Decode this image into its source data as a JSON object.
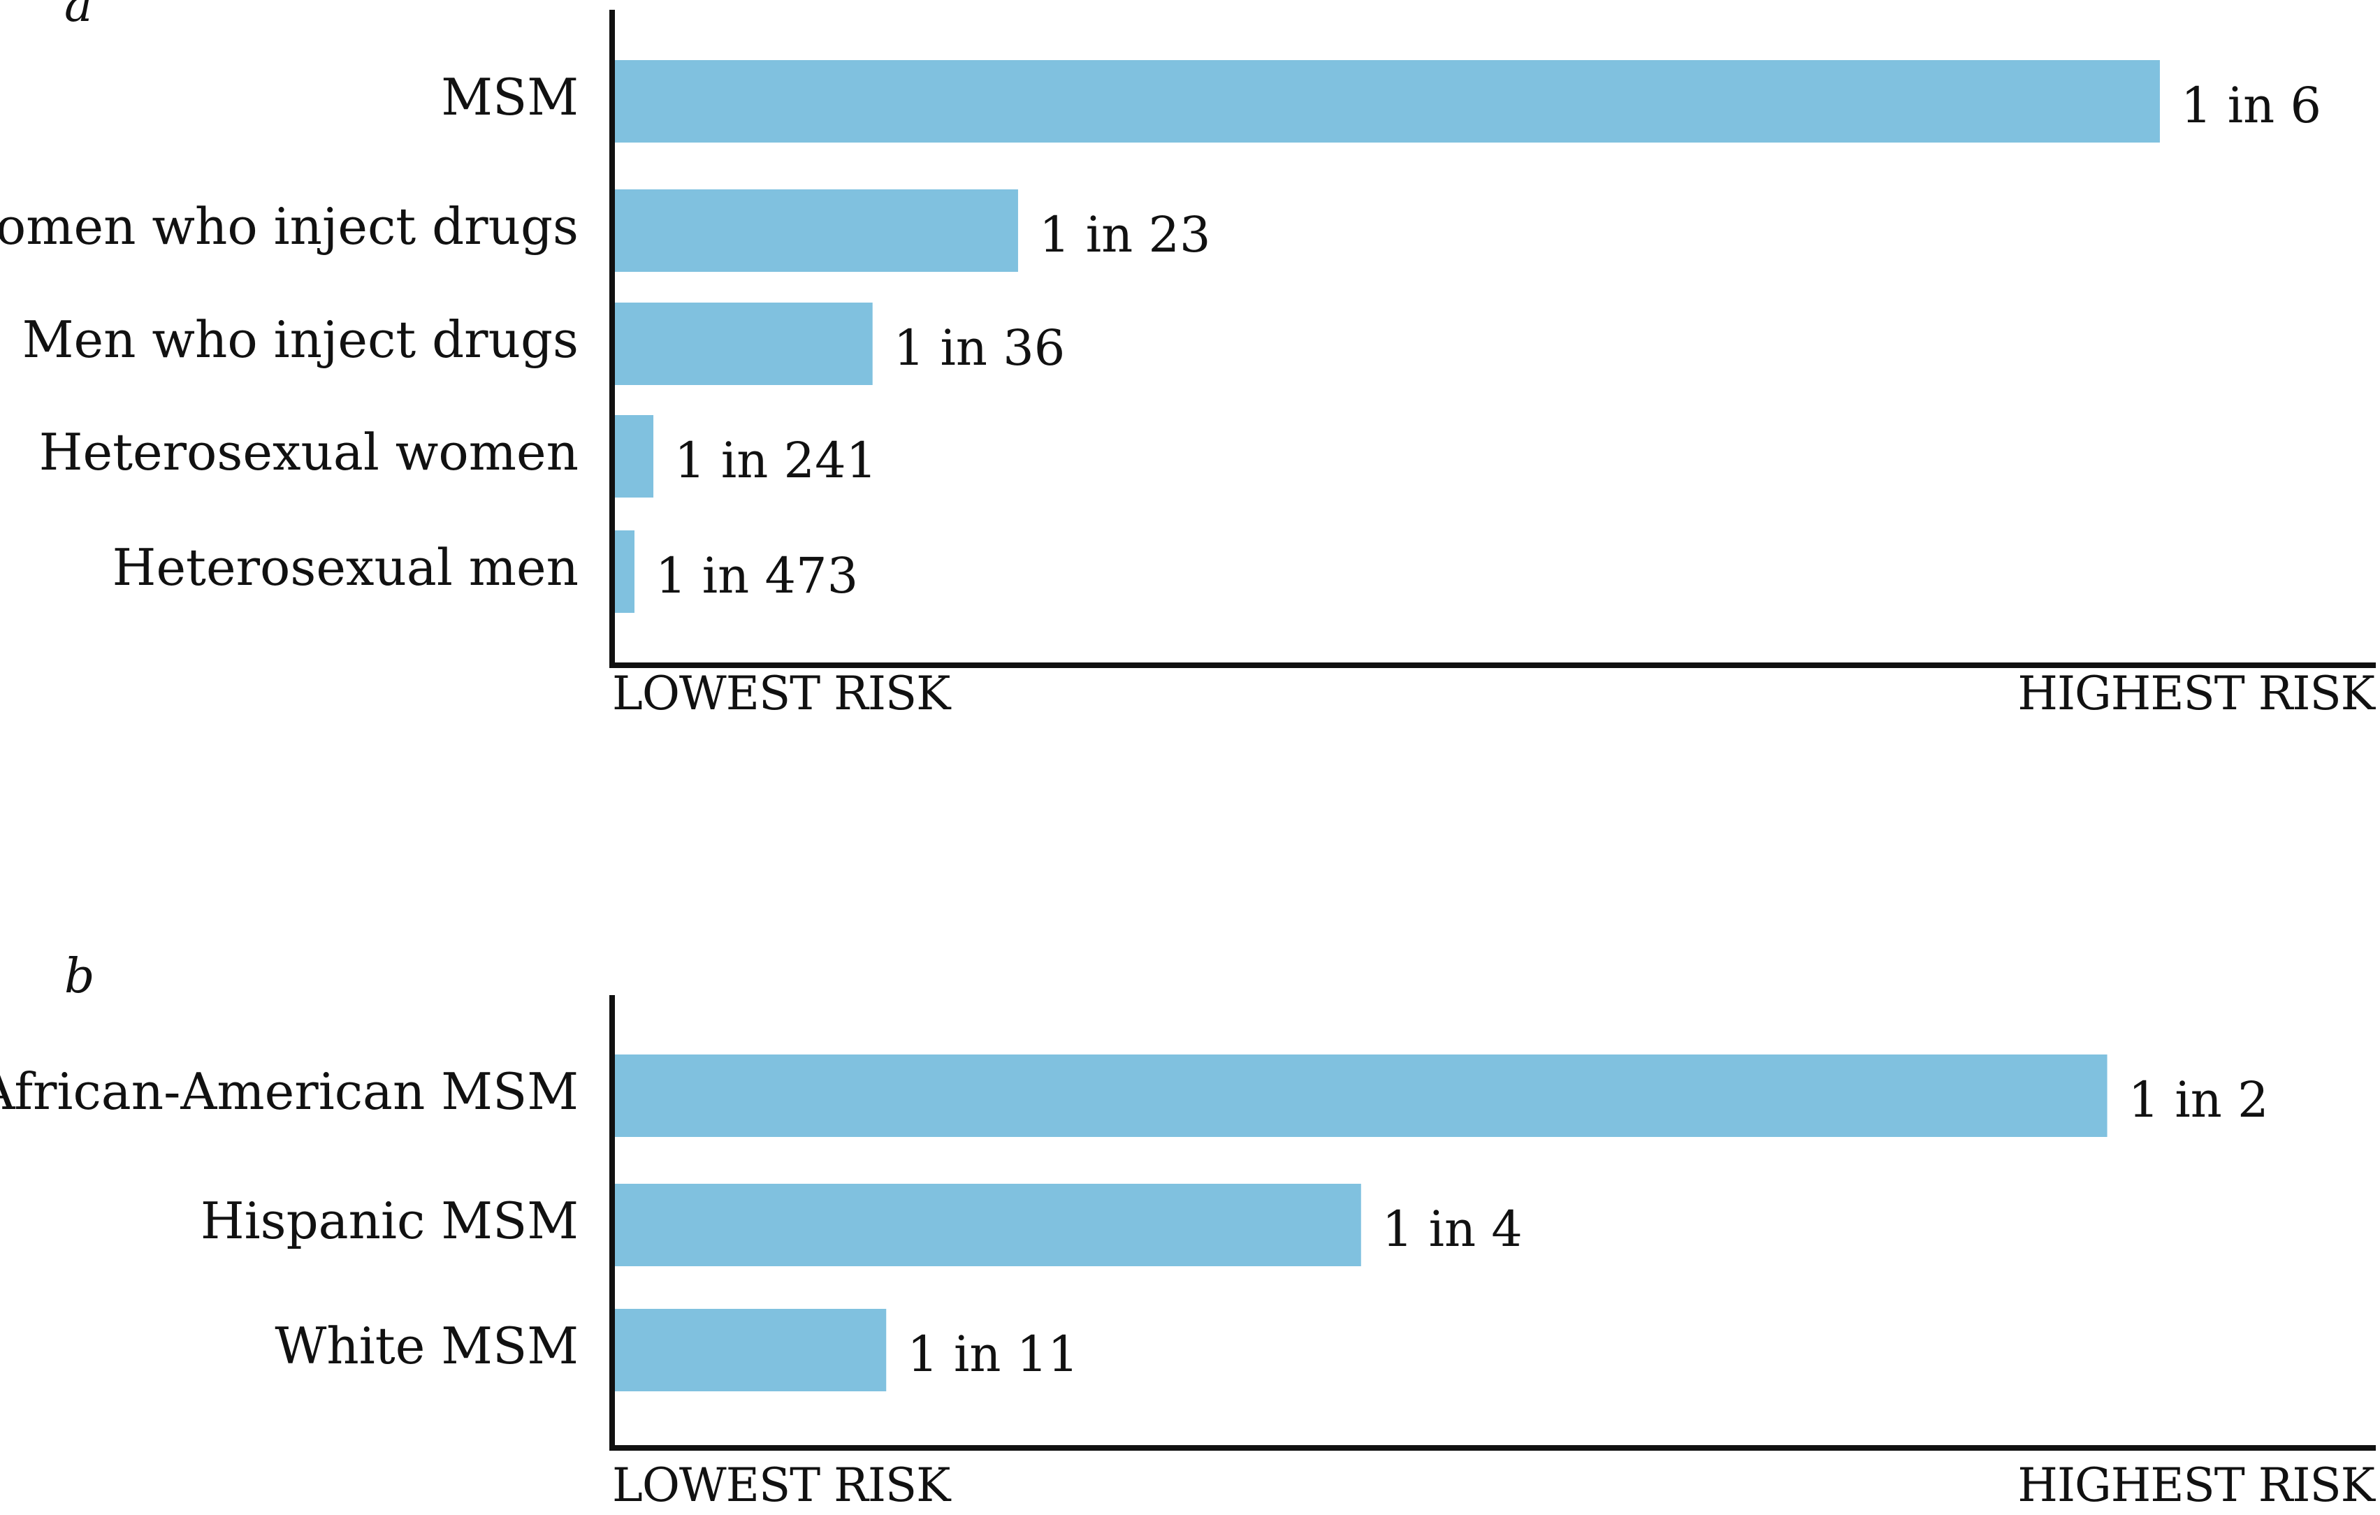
{
  "colors": {
    "bar": "#80C1DF",
    "text": "#111111",
    "axis": "#111111"
  },
  "chart_data": [
    {
      "type": "bar",
      "orientation": "horizontal",
      "panel": "a",
      "categories": [
        "MSM",
        "Women who inject drugs",
        "Men who inject drugs",
        "Heterosexual women",
        "Heterosexual men"
      ],
      "values": [
        0.1667,
        0.0435,
        0.0278,
        0.00415,
        0.00211
      ],
      "data_labels": [
        "1 in 6",
        "1 in 23",
        "1 in 36",
        "1 in 241",
        "1 in 473"
      ],
      "x_axis": {
        "left_label": "LOWEST RISK",
        "right_label": "HIGHEST RISK",
        "range": [
          0,
          0.19
        ]
      },
      "grid": false,
      "legend": "none"
    },
    {
      "type": "bar",
      "orientation": "horizontal",
      "panel": "b",
      "categories": [
        "African-American MSM",
        "Hispanic MSM",
        "White MSM"
      ],
      "values": [
        0.5,
        0.25,
        0.0909
      ],
      "data_labels": [
        "1 in 2",
        "1 in 4",
        "1 in 11"
      ],
      "x_axis": {
        "left_label": "LOWEST RISK",
        "right_label": "HIGHEST RISK",
        "range": [
          0,
          0.59
        ]
      },
      "grid": false,
      "legend": "none"
    }
  ]
}
